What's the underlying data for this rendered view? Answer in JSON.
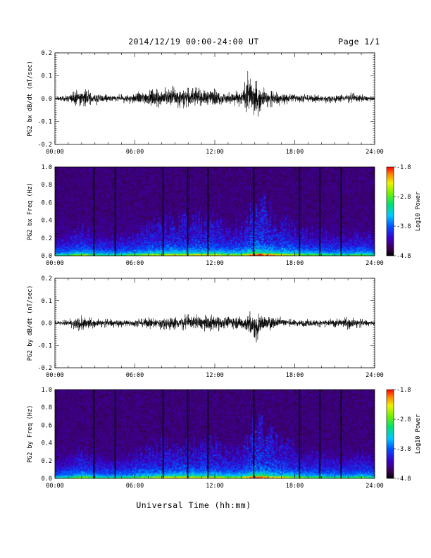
{
  "header": {
    "title": "2014/12/19  00:00-24:00 UT",
    "page": "Page 1/1"
  },
  "x_axis_title": "Universal Time (hh:mm)",
  "chart_data": [
    {
      "type": "line",
      "ylabel": "PG2 bx dB/dt (nT/sec)",
      "xlim": [
        "00:00",
        "24:00"
      ],
      "x_ticks": [
        "00:00",
        "06:00",
        "12:00",
        "18:00",
        "24:00"
      ],
      "ylim": [
        -0.2,
        0.2
      ],
      "y_ticks": [
        "-0.2",
        "-0.1",
        "0.0",
        "0.1",
        "0.2"
      ],
      "series": [
        {
          "x_hours": [
            0,
            1,
            2,
            3,
            4,
            5,
            6,
            7,
            8,
            9,
            10,
            11,
            12,
            13,
            14,
            14.5,
            15,
            15.5,
            16,
            17,
            18,
            19,
            20,
            21,
            22,
            23,
            24
          ],
          "envelope_max": [
            0.01,
            0.02,
            0.05,
            0.03,
            0.02,
            0.02,
            0.03,
            0.05,
            0.05,
            0.06,
            0.05,
            0.05,
            0.05,
            0.03,
            0.04,
            0.13,
            0.09,
            0.06,
            0.04,
            0.03,
            0.03,
            0.02,
            0.02,
            0.02,
            0.03,
            0.02,
            0.01
          ],
          "envelope_min": [
            -0.01,
            -0.02,
            -0.04,
            -0.03,
            -0.02,
            -0.02,
            -0.03,
            -0.04,
            -0.04,
            -0.05,
            -0.04,
            -0.04,
            -0.04,
            -0.03,
            -0.04,
            -0.08,
            -0.11,
            -0.05,
            -0.04,
            -0.03,
            -0.02,
            -0.02,
            -0.02,
            -0.02,
            -0.02,
            -0.02,
            -0.01
          ]
        }
      ]
    },
    {
      "type": "heatmap",
      "ylabel": "PG2 bx Freq (Hz)",
      "xlim": [
        "00:00",
        "24:00"
      ],
      "x_ticks": [
        "00:00",
        "06:00",
        "12:00",
        "18:00",
        "24:00"
      ],
      "ylim": [
        0.0,
        1.0
      ],
      "y_ticks": [
        "0.0",
        "0.2",
        "0.4",
        "0.6",
        "0.8",
        "1.0"
      ],
      "colorbar": {
        "label": "Log10 Power",
        "ticks": [
          "-1.8",
          "-2.8",
          "-3.8",
          "-4.8"
        ],
        "range": [
          -4.8,
          -1.8
        ]
      },
      "gap_lines_hours": [
        2.9,
        4.5,
        8.1,
        9.9,
        11.4,
        14.9,
        18.3,
        19.8,
        21.4
      ]
    },
    {
      "type": "line",
      "ylabel": "PG2 by dB/dt (nT/sec)",
      "xlim": [
        "00:00",
        "24:00"
      ],
      "x_ticks": [
        "00:00",
        "06:00",
        "12:00",
        "18:00",
        "24:00"
      ],
      "ylim": [
        -0.2,
        0.2
      ],
      "y_ticks": [
        "-0.2",
        "-0.1",
        "0.0",
        "0.1",
        "0.2"
      ],
      "series": [
        {
          "x_hours": [
            0,
            1,
            2,
            3,
            4,
            5,
            6,
            7,
            8,
            9,
            10,
            11,
            12,
            13,
            14,
            14.5,
            15,
            15.5,
            16,
            17,
            18,
            19,
            20,
            21,
            22,
            23,
            24
          ],
          "envelope_max": [
            0.01,
            0.02,
            0.04,
            0.02,
            0.02,
            0.02,
            0.02,
            0.03,
            0.03,
            0.04,
            0.04,
            0.04,
            0.04,
            0.04,
            0.04,
            0.05,
            0.06,
            0.05,
            0.04,
            0.03,
            0.02,
            0.02,
            0.02,
            0.02,
            0.03,
            0.02,
            0.01
          ],
          "envelope_min": [
            -0.01,
            -0.02,
            -0.05,
            -0.02,
            -0.02,
            -0.02,
            -0.02,
            -0.03,
            -0.03,
            -0.04,
            -0.03,
            -0.04,
            -0.04,
            -0.03,
            -0.04,
            -0.06,
            -0.1,
            -0.05,
            -0.04,
            -0.02,
            -0.02,
            -0.02,
            -0.02,
            -0.02,
            -0.03,
            -0.02,
            -0.01
          ]
        }
      ]
    },
    {
      "type": "heatmap",
      "ylabel": "PG2 by Freq (Hz)",
      "xlim": [
        "00:00",
        "24:00"
      ],
      "x_ticks": [
        "00:00",
        "06:00",
        "12:00",
        "18:00",
        "24:00"
      ],
      "ylim": [
        0.0,
        1.0
      ],
      "y_ticks": [
        "0.0",
        "0.2",
        "0.4",
        "0.6",
        "0.8",
        "1.0"
      ],
      "colorbar": {
        "label": "Log10 Power",
        "ticks": [
          "-1.8",
          "-2.8",
          "-3.8",
          "-4.8"
        ],
        "range": [
          -4.8,
          -1.8
        ]
      },
      "gap_lines_hours": [
        2.9,
        4.5,
        8.1,
        9.9,
        11.4,
        14.9,
        18.3,
        19.8,
        21.4
      ]
    }
  ]
}
